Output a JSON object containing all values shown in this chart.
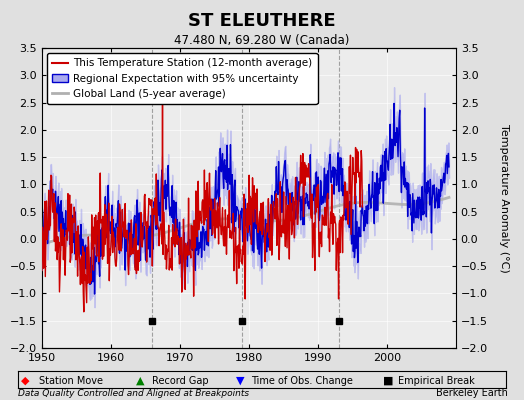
{
  "title": "ST ELEUTHERE",
  "subtitle": "47.480 N, 69.280 W (Canada)",
  "ylabel": "Temperature Anomaly (°C)",
  "xlabel_note": "Data Quality Controlled and Aligned at Breakpoints",
  "credit": "Berkeley Earth",
  "xlim": [
    1950,
    2010
  ],
  "ylim": [
    -2.0,
    3.5
  ],
  "yticks": [
    -2,
    -1.5,
    -1,
    -0.5,
    0,
    0.5,
    1,
    1.5,
    2,
    2.5,
    3,
    3.5
  ],
  "xticks": [
    1950,
    1960,
    1970,
    1980,
    1990,
    2000
  ],
  "bg_color": "#e0e0e0",
  "plot_bg": "#ececec",
  "red_color": "#cc0000",
  "blue_color": "#0000cc",
  "blue_fill": "#aaaaee",
  "gray_color": "#b0b0b0",
  "break_years": [
    1966,
    1979,
    1993
  ],
  "empirical_break_symbol_y": -1.5
}
